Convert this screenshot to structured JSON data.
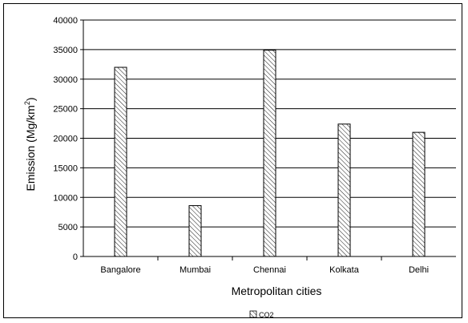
{
  "chart_data": {
    "type": "bar",
    "title": "",
    "xlabel": "Metropolitan cities",
    "ylabel": "Emission (Mg/km",
    "ylabel_sup": "2",
    "ylabel_close": ")",
    "categories": [
      "Bangalore",
      "Mumbai",
      "Chennai",
      "Kolkata",
      "Delhi"
    ],
    "series": [
      {
        "name": "CO2",
        "values": [
          32000,
          8600,
          34900,
          22400,
          21000
        ]
      }
    ],
    "ylim": [
      0,
      40000
    ],
    "yticks": [
      0,
      5000,
      10000,
      15000,
      20000,
      25000,
      30000,
      35000,
      40000
    ],
    "ytick_labels": [
      "0",
      "5000",
      "10000",
      "15000",
      "20000",
      "25000",
      "30000",
      "35000",
      "40000"
    ],
    "grid": "horizontal",
    "legend": "bottom-center",
    "bar_fill": "diagonal-hatch",
    "colors": {
      "bar_stroke": "#000000",
      "grid": "#000000",
      "frame": "#000000"
    }
  }
}
